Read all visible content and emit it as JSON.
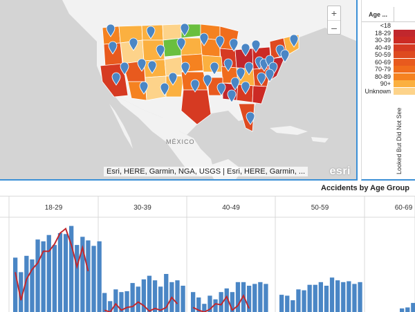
{
  "map": {
    "zoom_in_label": "+",
    "zoom_out_label": "–",
    "attribution": "Esri, HERE, Garmin, NGA, USGS | Esri, HERE, Garmin, ...",
    "logo": "esri",
    "country_label": "MÉXICO",
    "pin_color": "#4a86c5",
    "land_color": "#f2f2f2",
    "water_color": "#d4d4d4"
  },
  "legend": {
    "title": "Age ...",
    "vertical_label": "Looked But Did Not See",
    "items": [
      {
        "label": "<18",
        "color": "#ffffff"
      },
      {
        "label": "18-29",
        "color": "#c1272d"
      },
      {
        "label": "30-39",
        "color": "#cc2a24"
      },
      {
        "label": "40-49",
        "color": "#d63a22"
      },
      {
        "label": "50-59",
        "color": "#de4a20"
      },
      {
        "label": "60-69",
        "color": "#e85a1e"
      },
      {
        "label": "70-79",
        "color": "#f06c1c"
      },
      {
        "label": "80-89",
        "color": "#f58220"
      },
      {
        "label": "90+",
        "color": "#fbb040"
      },
      {
        "label": "Unknown",
        "color": "#fdd38a"
      }
    ]
  },
  "chart_data": {
    "type": "bar",
    "title": "Accidents by Age Group",
    "categories": [
      "18-29",
      "30-39",
      "40-49",
      "50-59",
      "60-69"
    ],
    "bar_color": "#4a86c5",
    "line_color": "#c1272d",
    "ylim": [
      0,
      1
    ],
    "groups": [
      {
        "label": "18-29",
        "bars": [
          0.6,
          0.44,
          0.62,
          0.58,
          0.8,
          0.78,
          0.85,
          0.74,
          0.87,
          0.86,
          0.95,
          0.74,
          0.83,
          0.79,
          0.73,
          0.78
        ],
        "line": [
          0.44,
          0.13,
          0.36,
          0.47,
          0.54,
          0.67,
          0.67,
          0.75,
          0.87,
          0.92,
          0.74,
          0.5,
          0.71,
          0.45
        ]
      },
      {
        "label": "30-39",
        "bars": [
          0.21,
          0.12,
          0.25,
          0.22,
          0.23,
          0.32,
          0.28,
          0.36,
          0.4,
          0.35,
          0.28,
          0.42,
          0.33,
          0.35,
          0.29
        ],
        "line": [
          0.02,
          0.0,
          0.09,
          0.02,
          0.05,
          0.06,
          0.11,
          0.07,
          0.01,
          0.04,
          0.02,
          0.05,
          0.16,
          0.09
        ]
      },
      {
        "label": "40-49",
        "bars": [
          0.22,
          0.16,
          0.09,
          0.18,
          0.14,
          0.22,
          0.26,
          0.22,
          0.33,
          0.33,
          0.29,
          0.31,
          0.33,
          0.31
        ],
        "line": [
          0.05,
          0.02,
          0.0,
          0.03,
          0.09,
          0.08,
          0.17,
          0.02,
          0.07,
          0.18,
          0.04
        ]
      },
      {
        "label": "50-59",
        "bars": [
          0.19,
          0.18,
          0.13,
          0.25,
          0.24,
          0.3,
          0.3,
          0.33,
          0.29,
          0.38,
          0.35,
          0.33,
          0.34,
          0.31,
          0.33
        ]
      },
      {
        "label": "60-69",
        "bars": [
          0.04,
          0.05,
          0.1,
          0.09
        ]
      }
    ]
  }
}
